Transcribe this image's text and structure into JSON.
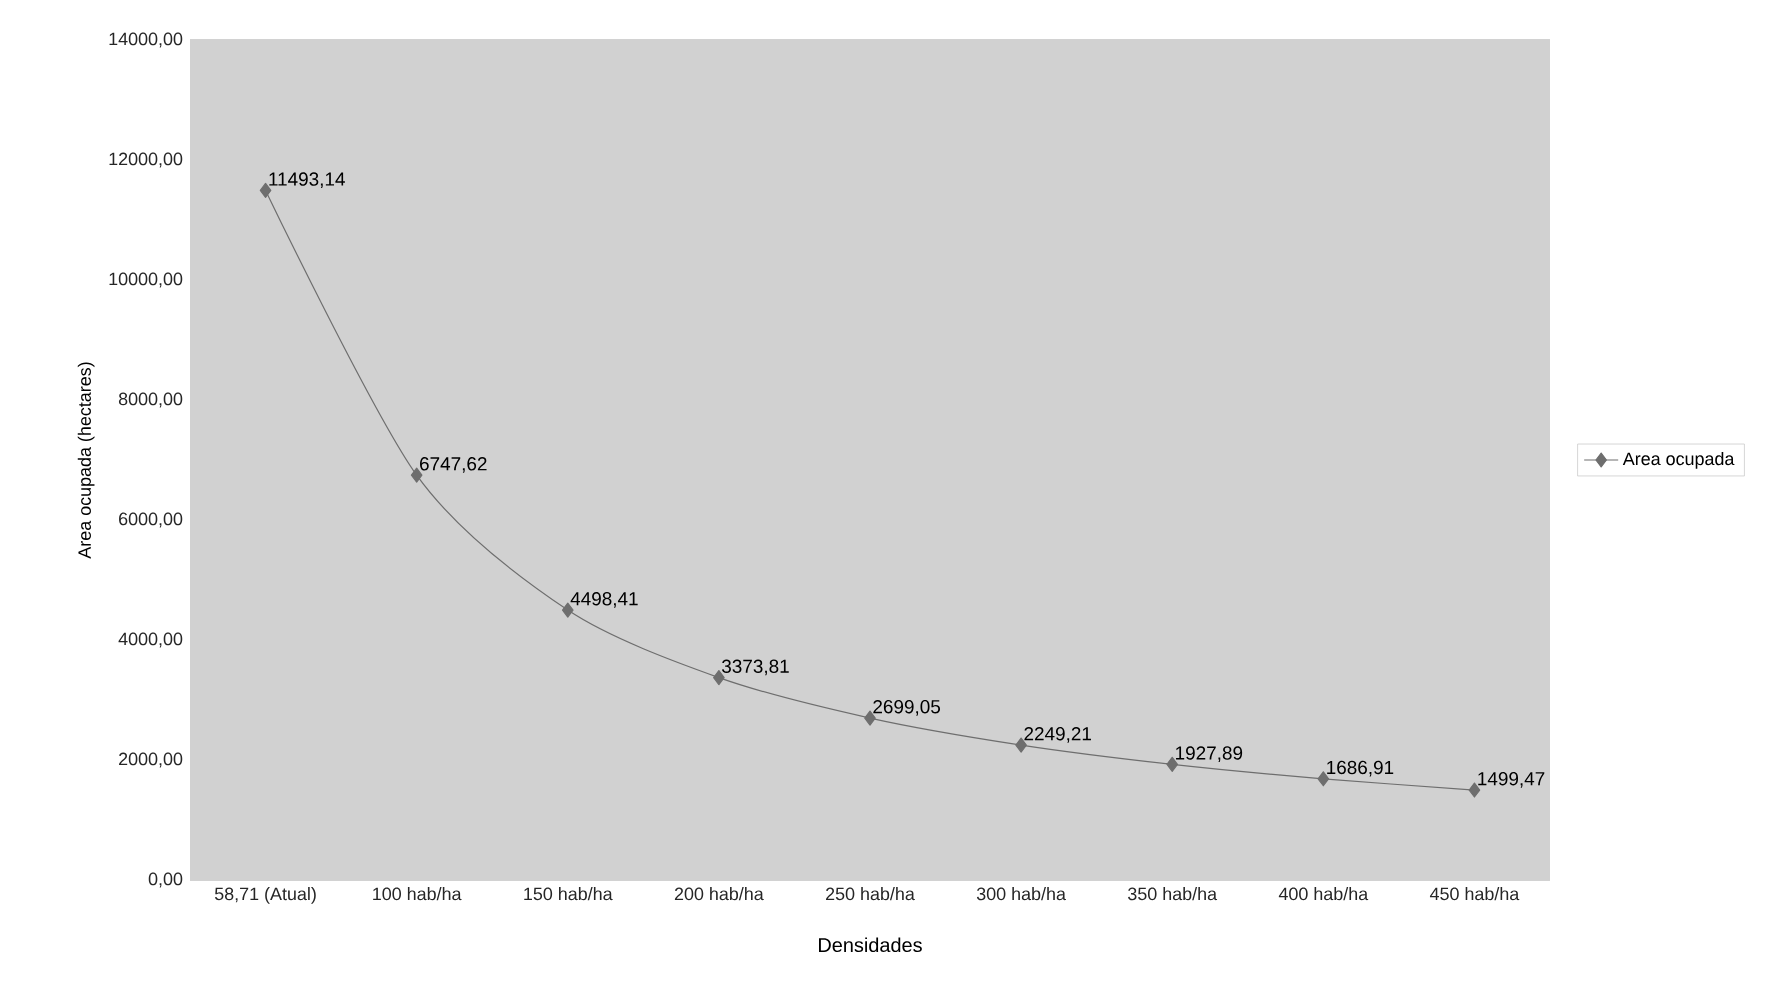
{
  "chart_data": {
    "type": "line",
    "xlabel": "Densidades",
    "ylabel": "Area ocupada (hectares)",
    "categories": [
      "58,71 (Atual)",
      "100 hab/ha",
      "150 hab/ha",
      "200 hab/ha",
      "250 hab/ha",
      "300 hab/ha",
      "350 hab/ha",
      "400 hab/ha",
      "450 hab/ha"
    ],
    "series": [
      {
        "name": "Area ocupada",
        "color": "#6e6e6e",
        "values": [
          11493.14,
          6747.62,
          4498.41,
          3373.81,
          2699.05,
          2249.21,
          1927.89,
          1686.91,
          1499.47
        ],
        "value_labels": [
          "11493,14",
          "6747,62",
          "4498,41",
          "3373,81",
          "2699,05",
          "2249,21",
          "1927,89",
          "1686,91",
          "1499,47"
        ]
      }
    ],
    "ylim": [
      0,
      14000
    ],
    "yticks": [
      {
        "value": 0,
        "label": "0,00"
      },
      {
        "value": 2000,
        "label": "2000,00"
      },
      {
        "value": 4000,
        "label": "4000,00"
      },
      {
        "value": 6000,
        "label": "6000,00"
      },
      {
        "value": 8000,
        "label": "8000,00"
      },
      {
        "value": 10000,
        "label": "10000,00"
      },
      {
        "value": 12000,
        "label": "12000,00"
      },
      {
        "value": 14000,
        "label": "14000,00"
      }
    ],
    "grid": "y",
    "legend": "right",
    "marker": "diamond",
    "line_style": "solid"
  }
}
